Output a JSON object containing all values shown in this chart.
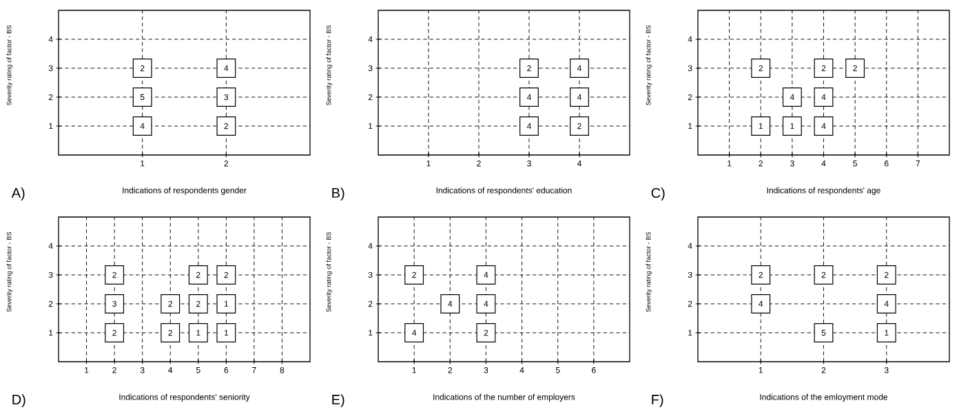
{
  "chart_data": [
    {
      "type": "scatter",
      "xlabel": "Indications of respondents gender",
      "ylabel": "Severity rating of factor - BS",
      "x": [
        1,
        1,
        1,
        2,
        2,
        2
      ],
      "values": [
        3,
        2,
        1,
        3,
        2,
        1
      ],
      "xlim": [
        0,
        3
      ],
      "ylim": [
        0,
        5
      ],
      "xticks": [
        1,
        2
      ],
      "yticks": [
        1,
        2,
        3,
        4
      ],
      "grid": true,
      "marker": "square",
      "annotations": [
        "A)",
        {
          "text": "2",
          "x": 1,
          "y": 3
        },
        {
          "text": "5",
          "x": 1,
          "y": 2
        },
        {
          "text": "4",
          "x": 1,
          "y": 1
        },
        {
          "text": "4",
          "x": 2,
          "y": 3
        },
        {
          "text": "3",
          "x": 2,
          "y": 2
        },
        {
          "text": "2",
          "x": 2,
          "y": 1
        }
      ]
    },
    {
      "type": "scatter",
      "xlabel": "Indications of respondents' education",
      "ylabel": "Severity rating of factor - BS",
      "x": [
        3,
        3,
        3,
        4,
        4,
        4
      ],
      "values": [
        3,
        2,
        1,
        3,
        2,
        1
      ],
      "xlim": [
        0,
        5
      ],
      "ylim": [
        0,
        5
      ],
      "xticks": [
        1,
        2,
        3,
        4
      ],
      "yticks": [
        1,
        2,
        3,
        4
      ],
      "grid": true,
      "marker": "square",
      "annotations": [
        "B)",
        {
          "text": "2",
          "x": 3,
          "y": 3
        },
        {
          "text": "4",
          "x": 3,
          "y": 2
        },
        {
          "text": "4",
          "x": 3,
          "y": 1
        },
        {
          "text": "4",
          "x": 4,
          "y": 3
        },
        {
          "text": "4",
          "x": 4,
          "y": 2
        },
        {
          "text": "2",
          "x": 4,
          "y": 1
        }
      ]
    },
    {
      "type": "scatter",
      "xlabel": "Indications of respondents' age",
      "ylabel": "Severity rating of factor - BS",
      "x": [
        2,
        4,
        5,
        3,
        4,
        2,
        3,
        4
      ],
      "values": [
        3,
        3,
        3,
        2,
        2,
        1,
        1,
        1
      ],
      "xlim": [
        0,
        8
      ],
      "ylim": [
        0,
        5
      ],
      "xticks": [
        1,
        2,
        3,
        4,
        5,
        6,
        7
      ],
      "yticks": [
        1,
        2,
        3,
        4
      ],
      "grid": true,
      "marker": "square",
      "annotations": [
        "C)",
        {
          "text": "2",
          "x": 2,
          "y": 3
        },
        {
          "text": "2",
          "x": 4,
          "y": 3
        },
        {
          "text": "2",
          "x": 5,
          "y": 3
        },
        {
          "text": "4",
          "x": 3,
          "y": 2
        },
        {
          "text": "4",
          "x": 4,
          "y": 2
        },
        {
          "text": "1",
          "x": 2,
          "y": 1
        },
        {
          "text": "1",
          "x": 3,
          "y": 1
        },
        {
          "text": "4",
          "x": 4,
          "y": 1
        }
      ]
    },
    {
      "type": "scatter",
      "xlabel": "Indications of respondents' seniority",
      "ylabel": "Severity rating of factor - BS",
      "x": [
        2,
        5,
        6,
        2,
        4,
        5,
        6,
        2,
        4,
        5,
        6
      ],
      "values": [
        3,
        3,
        3,
        2,
        2,
        2,
        2,
        1,
        1,
        1,
        1
      ],
      "xlim": [
        0,
        9
      ],
      "ylim": [
        0,
        5
      ],
      "xticks": [
        1,
        2,
        3,
        4,
        5,
        6,
        7,
        8
      ],
      "yticks": [
        1,
        2,
        3,
        4
      ],
      "grid": true,
      "marker": "square",
      "annotations": [
        "D)",
        {
          "text": "2",
          "x": 2,
          "y": 3
        },
        {
          "text": "2",
          "x": 5,
          "y": 3
        },
        {
          "text": "2",
          "x": 6,
          "y": 3
        },
        {
          "text": "3",
          "x": 2,
          "y": 2
        },
        {
          "text": "2",
          "x": 4,
          "y": 2
        },
        {
          "text": "2",
          "x": 5,
          "y": 2
        },
        {
          "text": "1",
          "x": 6,
          "y": 2
        },
        {
          "text": "2",
          "x": 2,
          "y": 1
        },
        {
          "text": "2",
          "x": 4,
          "y": 1
        },
        {
          "text": "1",
          "x": 5,
          "y": 1
        },
        {
          "text": "1",
          "x": 6,
          "y": 1
        }
      ]
    },
    {
      "type": "scatter",
      "xlabel": "Indications of the number of employers",
      "ylabel": "Severity rating of factor - BS",
      "x": [
        1,
        3,
        2,
        3,
        1,
        3
      ],
      "values": [
        3,
        3,
        2,
        2,
        1,
        1
      ],
      "xlim": [
        0,
        7
      ],
      "ylim": [
        0,
        5
      ],
      "xticks": [
        1,
        2,
        3,
        4,
        5,
        6
      ],
      "yticks": [
        1,
        2,
        3,
        4
      ],
      "grid": true,
      "marker": "square",
      "annotations": [
        "E)",
        {
          "text": "2",
          "x": 1,
          "y": 3
        },
        {
          "text": "4",
          "x": 3,
          "y": 3
        },
        {
          "text": "4",
          "x": 2,
          "y": 2
        },
        {
          "text": "4",
          "x": 3,
          "y": 2
        },
        {
          "text": "4",
          "x": 1,
          "y": 1
        },
        {
          "text": "2",
          "x": 3,
          "y": 1
        }
      ]
    },
    {
      "type": "scatter",
      "xlabel": "Indications of the emloyment mode",
      "ylabel": "Severity rating of factor - BS",
      "x": [
        1,
        2,
        3,
        1,
        3,
        2,
        3
      ],
      "values": [
        3,
        3,
        3,
        2,
        2,
        1,
        1
      ],
      "xlim": [
        0,
        4
      ],
      "ylim": [
        0,
        5
      ],
      "xticks": [
        1,
        2,
        3
      ],
      "yticks": [
        1,
        2,
        3,
        4
      ],
      "grid": true,
      "marker": "square",
      "annotations": [
        "F)",
        {
          "text": "2",
          "x": 1,
          "y": 3
        },
        {
          "text": "2",
          "x": 2,
          "y": 3
        },
        {
          "text": "2",
          "x": 3,
          "y": 3
        },
        {
          "text": "4",
          "x": 1,
          "y": 2
        },
        {
          "text": "4",
          "x": 3,
          "y": 2
        },
        {
          "text": "5",
          "x": 2,
          "y": 1
        },
        {
          "text": "1",
          "x": 3,
          "y": 1
        }
      ]
    }
  ]
}
